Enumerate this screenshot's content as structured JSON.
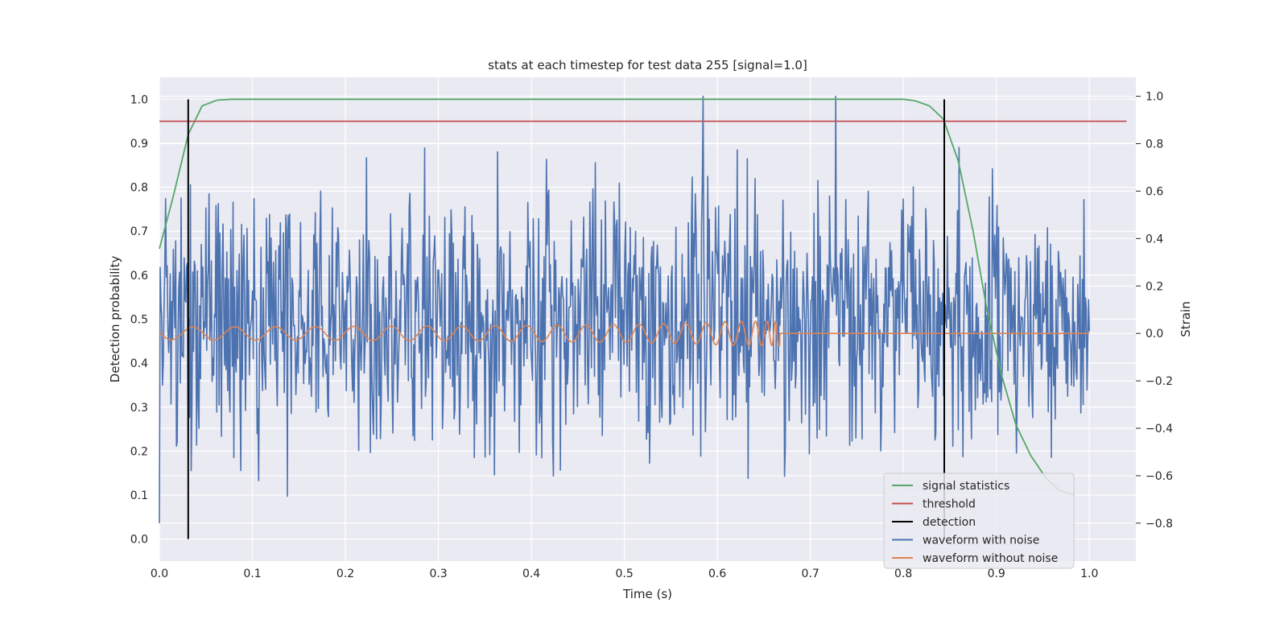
{
  "chart_data": {
    "type": "line",
    "title": "stats at each timestep for test data 255 [signal=1.0]",
    "xlabel": "Time (s)",
    "ylabel": "Detection probability",
    "ylabel_right": "Strain",
    "xlim": [
      0.0,
      1.05
    ],
    "ylim": [
      -0.05,
      1.05
    ],
    "ylim_right": [
      -0.96,
      1.08
    ],
    "x_ticks": [
      "0.0",
      "0.1",
      "0.2",
      "0.3",
      "0.4",
      "0.5",
      "0.6",
      "0.7",
      "0.8",
      "0.9",
      "1.0"
    ],
    "y_ticks": [
      "0.0",
      "0.1",
      "0.2",
      "0.3",
      "0.4",
      "0.5",
      "0.6",
      "0.7",
      "0.8",
      "0.9",
      "1.0"
    ],
    "y_ticks_right": [
      "−0.8",
      "−0.6",
      "−0.4",
      "−0.2",
      "0.0",
      "0.2",
      "0.4",
      "0.6",
      "0.8",
      "1.0"
    ],
    "grid": true,
    "legend_position": "lower-right",
    "legend": [
      "signal statistics",
      "threshold",
      "detection",
      "waveform with noise",
      "waveform without noise"
    ],
    "colors": {
      "signal statistics": "#55a868",
      "threshold": "#c44e52",
      "detection": "#000000",
      "waveform with noise": "#4c72b0",
      "waveform without noise": "#dd8452",
      "background": "#eaeaf2",
      "grid": "#ffffff"
    },
    "series": [
      {
        "name": "signal statistics",
        "axis": "left",
        "x": [
          0.0,
          0.015,
          0.031,
          0.046,
          0.062,
          0.078,
          0.1,
          0.2,
          0.3,
          0.4,
          0.5,
          0.6,
          0.7,
          0.8,
          0.812,
          0.828,
          0.843,
          0.859,
          0.875,
          0.89,
          0.906,
          0.921,
          0.937,
          0.953,
          0.968,
          0.984
        ],
        "values": [
          0.66,
          0.78,
          0.92,
          0.985,
          0.998,
          1.0,
          1.0,
          1.0,
          1.0,
          1.0,
          1.0,
          1.0,
          1.0,
          1.0,
          0.997,
          0.985,
          0.955,
          0.86,
          0.7,
          0.52,
          0.37,
          0.26,
          0.19,
          0.14,
          0.11,
          0.1
        ]
      },
      {
        "name": "threshold",
        "axis": "left",
        "x": [
          0.0,
          1.04
        ],
        "values": [
          0.95,
          0.95
        ]
      },
      {
        "name": "detection",
        "axis": "left",
        "type": "vlines",
        "x": [
          0.031,
          0.844
        ],
        "ymin": 0.0,
        "ymax": 1.0
      },
      {
        "name": "waveform with noise",
        "axis": "right",
        "x_range": [
          0.0,
          1.0
        ],
        "n_points": 1200,
        "amplitude_range": [
          -0.8,
          1.0
        ]
      },
      {
        "name": "waveform without noise",
        "axis": "right",
        "x_range": [
          0.0,
          1.0
        ],
        "chirp_end": 0.667,
        "amplitude": 0.03
      }
    ]
  }
}
